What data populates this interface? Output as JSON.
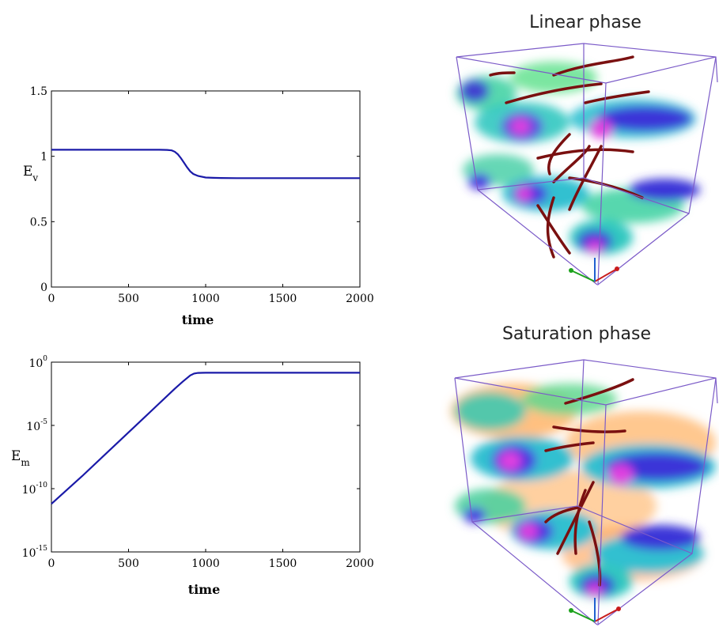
{
  "chart_data": [
    {
      "type": "line",
      "xlabel": "time",
      "ylabel": "E",
      "ylabel_sub": "v",
      "xlim": [
        0,
        2000
      ],
      "ylim": [
        0,
        1.5
      ],
      "xticks": [
        "0",
        "500",
        "1000",
        "1500",
        "2000"
      ],
      "yticks": [
        "0",
        "0.5",
        "1",
        "1.5"
      ],
      "series": [
        {
          "color": "#1a1aa8",
          "x": [
            0,
            200,
            400,
            600,
            700,
            750,
            780,
            800,
            820,
            840,
            860,
            880,
            900,
            920,
            950,
            1000,
            1050,
            1100,
            1200,
            1500,
            2000
          ],
          "y": [
            1.05,
            1.05,
            1.05,
            1.05,
            1.05,
            1.049,
            1.045,
            1.035,
            1.015,
            0.985,
            0.95,
            0.915,
            0.885,
            0.865,
            0.85,
            0.838,
            0.835,
            0.834,
            0.833,
            0.833,
            0.833
          ]
        }
      ]
    },
    {
      "type": "line",
      "xlabel": "time",
      "ylabel": "E",
      "ylabel_sub": "m",
      "yscale": "log",
      "xlim": [
        0,
        2000
      ],
      "ylim": [
        1e-15,
        1
      ],
      "xticks": [
        "0",
        "500",
        "1000",
        "1500",
        "2000"
      ],
      "yticks": [
        {
          "base": "10",
          "exp": "0",
          "value": 1
        },
        {
          "base": "10",
          "exp": "-5",
          "value": 1e-05
        },
        {
          "base": "10",
          "exp": "-10",
          "value": 1e-10
        },
        {
          "base": "10",
          "exp": "-15",
          "value": 1e-15
        }
      ],
      "series": [
        {
          "color": "#1a1aa8",
          "x": [
            0,
            100,
            200,
            300,
            400,
            500,
            600,
            700,
            800,
            850,
            900,
            925,
            950,
            1000,
            1200,
            1500,
            2000
          ],
          "log10y": [
            -11.2,
            -10.1,
            -9.0,
            -7.85,
            -6.7,
            -5.55,
            -4.4,
            -3.25,
            -2.1,
            -1.55,
            -1.05,
            -0.9,
            -0.85,
            -0.84,
            -0.84,
            -0.84,
            -0.84
          ]
        }
      ]
    }
  ],
  "visualizations": {
    "top_title": "Linear phase",
    "bottom_title": "Saturation phase"
  }
}
